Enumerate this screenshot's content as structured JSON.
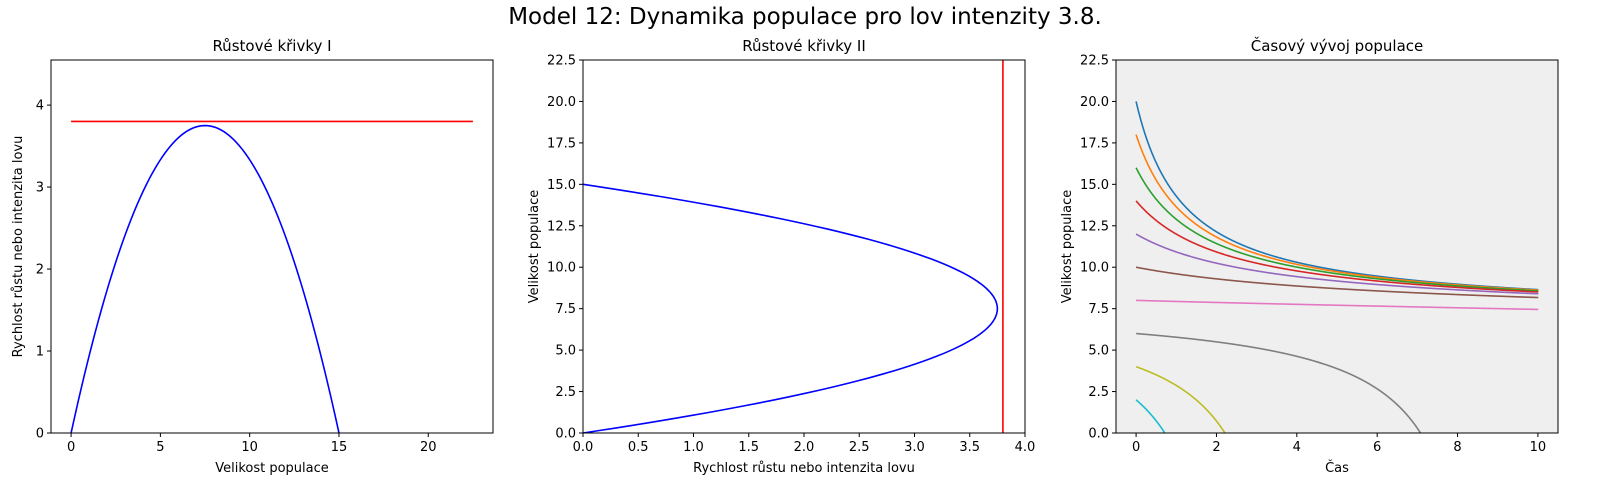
{
  "suptitle": "Model 12: Dynamika populace pro lov intenzity 3.8.",
  "chart_data": [
    {
      "id": "p1",
      "type": "line",
      "title": "Růstové křivky I",
      "xlabel": "Velikost populace",
      "ylabel": "Rychlost růstu nebo intenzita lovu",
      "xlim": [
        -1.125,
        23.625
      ],
      "ylim": [
        0,
        4.55
      ],
      "xticks": [
        0,
        5,
        10,
        15,
        20
      ],
      "xticklabels": [
        "0",
        "5",
        "10",
        "15",
        "20"
      ],
      "yticks": [
        0,
        1,
        2,
        3,
        4
      ],
      "yticklabels": [
        "0",
        "1",
        "2",
        "3",
        "4"
      ],
      "background": "#ffffff",
      "grid": false,
      "series": [
        {
          "color": "#0000ff",
          "kind": "parabola",
          "x": [
            0,
            1.5,
            3,
            4.5,
            6,
            7.5,
            9,
            10.5,
            12,
            13.5,
            15
          ],
          "y": [
            0,
            1.35,
            2.4,
            3.15,
            3.6,
            3.75,
            3.6,
            3.15,
            2.4,
            1.35,
            0
          ]
        },
        {
          "color": "#ff0000",
          "x": [
            0,
            22.5
          ],
          "y": [
            3.8,
            3.8
          ]
        }
      ]
    },
    {
      "id": "p2",
      "type": "line",
      "title": "Růstové křivky II",
      "xlabel": "Rychlost růstu nebo intenzita lovu",
      "ylabel": "Velikost populace",
      "xlim": [
        0,
        4.0
      ],
      "ylim": [
        0,
        22.5
      ],
      "xticks": [
        0,
        0.5,
        1.0,
        1.5,
        2.0,
        2.5,
        3.0,
        3.5,
        4.0
      ],
      "xticklabels": [
        "0.0",
        "0.5",
        "1.0",
        "1.5",
        "2.0",
        "2.5",
        "3.0",
        "3.5",
        "4.0"
      ],
      "yticks": [
        0,
        2.5,
        5.0,
        7.5,
        10.0,
        12.5,
        15.0,
        17.5,
        20.0,
        22.5
      ],
      "yticklabels": [
        "0.0",
        "2.5",
        "5.0",
        "7.5",
        "10.0",
        "12.5",
        "15.0",
        "17.5",
        "20.0",
        "22.5"
      ],
      "background": "#ffffff",
      "grid": false,
      "series": [
        {
          "color": "#0000ff",
          "kind": "parabola",
          "x": [
            0,
            1.35,
            2.4,
            3.15,
            3.6,
            3.75,
            3.6,
            3.15,
            2.4,
            1.35,
            0
          ],
          "y": [
            0,
            1.5,
            3,
            4.5,
            6,
            7.5,
            9,
            10.5,
            12,
            13.5,
            15
          ]
        },
        {
          "color": "#ff0000",
          "x": [
            3.8,
            3.8
          ],
          "y": [
            0,
            22.5
          ]
        }
      ]
    },
    {
      "id": "p3",
      "type": "line",
      "title": "Časový vývoj populace",
      "xlabel": "Čas",
      "ylabel": "Velikost populace",
      "xlim": [
        -0.5,
        10.5
      ],
      "ylim": [
        0,
        22.5
      ],
      "xticks": [
        0,
        2,
        4,
        6,
        8,
        10
      ],
      "xticklabels": [
        "0",
        "2",
        "4",
        "6",
        "8",
        "10"
      ],
      "yticks": [
        0,
        2.5,
        5.0,
        7.5,
        10.0,
        12.5,
        15.0,
        17.5,
        20.0,
        22.5
      ],
      "yticklabels": [
        "0.0",
        "2.5",
        "5.0",
        "7.5",
        "10.0",
        "12.5",
        "15.0",
        "17.5",
        "20.0",
        "22.5"
      ],
      "background": "#efefef",
      "grid": false,
      "model": {
        "r": 1,
        "K": 15,
        "h": 3.8,
        "t_end": 10
      },
      "series": [
        {
          "color": "#1f77b4",
          "x0": 20
        },
        {
          "color": "#ff7f0e",
          "x0": 18
        },
        {
          "color": "#2ca02c",
          "x0": 16
        },
        {
          "color": "#d62728",
          "x0": 14
        },
        {
          "color": "#9467bd",
          "x0": 12
        },
        {
          "color": "#8c564b",
          "x0": 10
        },
        {
          "color": "#e377c2",
          "x0": 8
        },
        {
          "color": "#7f7f7f",
          "x0": 6
        },
        {
          "color": "#bcbd22",
          "x0": 4
        },
        {
          "color": "#17becf",
          "x0": 2
        }
      ]
    }
  ]
}
